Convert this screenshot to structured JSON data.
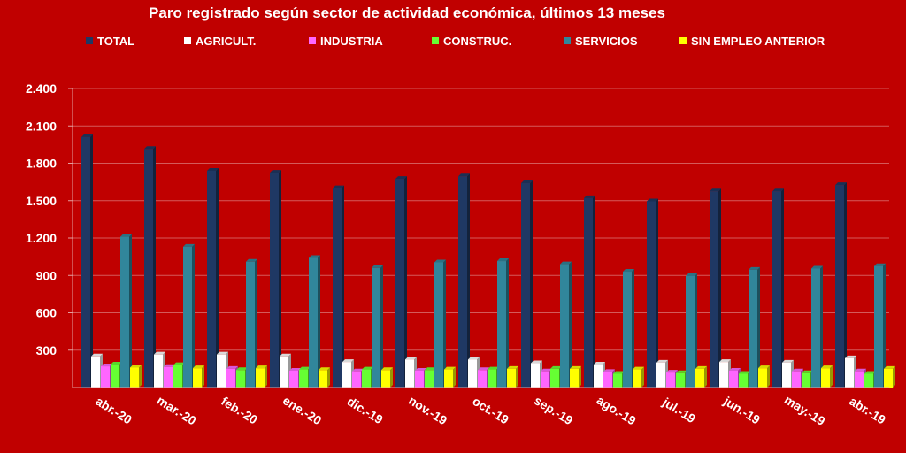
{
  "chart_data": {
    "type": "bar",
    "title": "Paro registrado según sector de actividad económica, últimos 13 meses",
    "xlabel": "",
    "ylabel": "",
    "ylim": [
      0,
      2400
    ],
    "yticks": [
      300,
      600,
      900,
      1200,
      1500,
      1800,
      2100,
      2400
    ],
    "ytick_labels": [
      "300",
      "600",
      "900",
      "1.200",
      "1.500",
      "1.800",
      "2.100",
      "2.400"
    ],
    "grid": true,
    "legend_position": "top",
    "categories": [
      "abr.-20",
      "mar.-20",
      "feb.-20",
      "ene.-20",
      "dic.-19",
      "nov.-19",
      "oct.-19",
      "sep.-19",
      "ago.-19",
      "jul.-19",
      "jun.-19",
      "may.-19",
      "abr.-19"
    ],
    "series": [
      {
        "name": "TOTAL",
        "color": "#1f3864",
        "values": [
          2010,
          1915,
          1740,
          1725,
          1600,
          1675,
          1695,
          1640,
          1520,
          1495,
          1575,
          1575,
          1625
        ]
      },
      {
        "name": "AGRICULT.",
        "color": "#ffffff",
        "values": [
          250,
          265,
          265,
          250,
          205,
          225,
          225,
          195,
          185,
          200,
          205,
          200,
          235
        ]
      },
      {
        "name": "INDUSTRIA",
        "color": "#ff66ff",
        "values": [
          170,
          165,
          150,
          135,
          130,
          135,
          140,
          130,
          125,
          120,
          135,
          130,
          130
        ]
      },
      {
        "name": "CONSTRUC.",
        "color": "#66ff33",
        "values": [
          185,
          180,
          140,
          145,
          145,
          140,
          145,
          150,
          110,
          115,
          110,
          115,
          110
        ]
      },
      {
        "name": "SERVICIOS",
        "color": "#31869b",
        "values": [
          1210,
          1130,
          1010,
          1040,
          960,
          1005,
          1015,
          990,
          930,
          895,
          945,
          955,
          975
        ]
      },
      {
        "name": "SIN EMPLEO ANTERIOR",
        "color": "#ffff00",
        "values": [
          160,
          155,
          155,
          140,
          140,
          145,
          150,
          150,
          145,
          150,
          155,
          155,
          150
        ]
      }
    ]
  }
}
